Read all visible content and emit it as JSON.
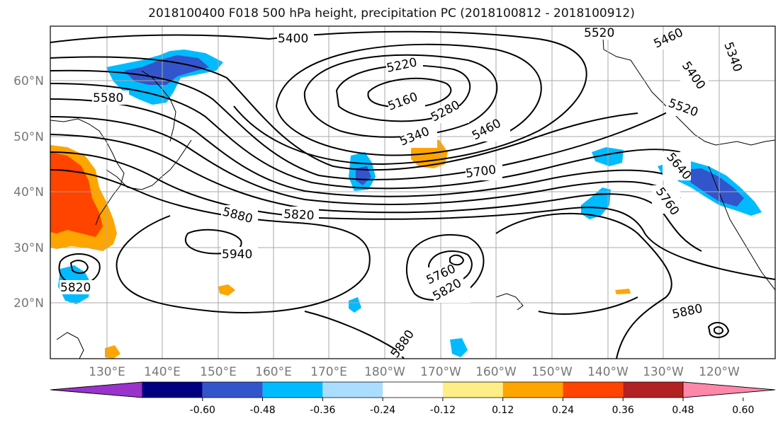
{
  "title": "2018100400 F018 500 hPa height, precipitation PC (2018100812 - 2018100912)",
  "lat_labels": [
    {
      "text": "60°N",
      "lat": 60
    },
    {
      "text": "50°N",
      "lat": 50
    },
    {
      "text": "40°N",
      "lat": 40
    },
    {
      "text": "30°N",
      "lat": 30
    },
    {
      "text": "20°N",
      "lat": 20
    }
  ],
  "lon_labels": [
    {
      "text": "130°E",
      "lon": 130
    },
    {
      "text": "140°E",
      "lon": 140
    },
    {
      "text": "150°E",
      "lon": 150
    },
    {
      "text": "160°E",
      "lon": 160
    },
    {
      "text": "170°E",
      "lon": 170
    },
    {
      "text": "180°W",
      "lon": 180
    },
    {
      "text": "170°W",
      "lon": 190
    },
    {
      "text": "160°W",
      "lon": 200
    },
    {
      "text": "150°W",
      "lon": 210
    },
    {
      "text": "140°W",
      "lon": 220
    },
    {
      "text": "130°W",
      "lon": 230
    },
    {
      "text": "120°W",
      "lon": 240
    }
  ],
  "contour_labels": [
    "5400",
    "5520",
    "5460",
    "5340",
    "5400",
    "5220",
    "5160",
    "5580",
    "5280",
    "5340",
    "5460",
    "5520",
    "5640",
    "5700",
    "5760",
    "5820",
    "5880",
    "5940",
    "5820",
    "5760",
    "5820",
    "5880",
    "5880"
  ],
  "colorbar": {
    "colors": [
      "#9933cc",
      "#000080",
      "#3355cc",
      "#00bbff",
      "#aaddff",
      "#ffffff",
      "#ffee88",
      "#ffa500",
      "#ff4400",
      "#b22222",
      "#ff88aa"
    ],
    "tick_labels": [
      "-0.60",
      "-0.48",
      "-0.36",
      "-0.24",
      "-0.12",
      "0.12",
      "0.24",
      "0.36",
      "0.48",
      "0.60"
    ]
  }
}
